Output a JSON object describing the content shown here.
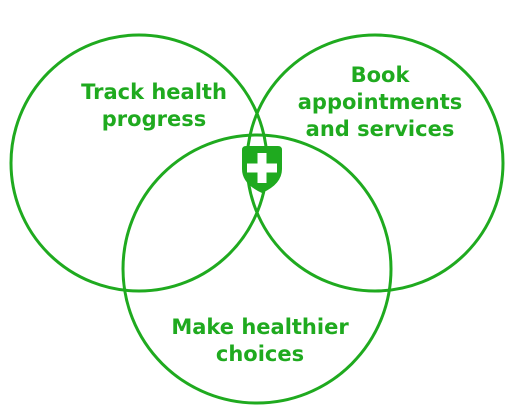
{
  "colors": {
    "accent": "#1faa1f",
    "background": "#ffffff",
    "cross": "#ffffff"
  },
  "diagram": {
    "type": "venn",
    "sets": [
      {
        "id": "track",
        "lines": [
          "Track health",
          "progress"
        ]
      },
      {
        "id": "book",
        "lines": [
          "Book",
          "appointments",
          "and services"
        ]
      },
      {
        "id": "choices",
        "lines": [
          "Make healthier",
          "choices"
        ]
      }
    ],
    "center_icon": "shield-cross-icon"
  }
}
